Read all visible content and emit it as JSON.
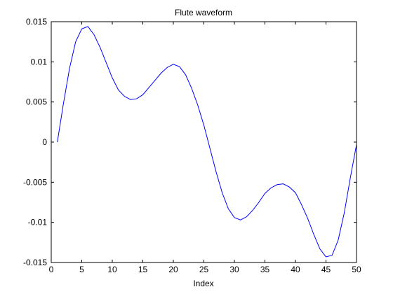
{
  "chart_data": {
    "type": "line",
    "title": "Flute waveform",
    "xlabel": "Index",
    "ylabel": "",
    "xlim": [
      0,
      50
    ],
    "ylim": [
      -0.015,
      0.015
    ],
    "x_ticks": [
      0,
      5,
      10,
      15,
      20,
      25,
      30,
      35,
      40,
      45,
      50
    ],
    "x_tick_labels": [
      "0",
      "5",
      "10",
      "15",
      "20",
      "25",
      "30",
      "35",
      "40",
      "45",
      "50"
    ],
    "y_ticks": [
      0.015,
      0.01,
      0.005,
      0,
      -0.005,
      -0.01,
      -0.015
    ],
    "y_tick_labels": [
      "0.015",
      "0.01",
      "0.005",
      "0",
      "-0.005",
      "-0.01",
      "-0.015"
    ],
    "grid": false,
    "legend": "none",
    "line_color": "#0000ff",
    "series": [
      {
        "x": [
          1,
          2,
          3,
          4,
          5,
          6,
          7,
          8,
          9,
          10,
          11,
          12,
          13,
          14,
          15,
          16,
          17,
          18,
          19,
          20,
          21,
          22,
          23,
          24,
          25,
          26,
          27,
          28,
          29,
          30,
          31,
          32,
          33,
          34,
          35,
          36,
          37,
          38,
          39,
          40,
          41,
          42,
          43,
          44,
          45,
          46,
          47,
          48,
          49,
          50
        ],
        "values": [
          0.0,
          0.0048,
          0.0092,
          0.0125,
          0.0141,
          0.0144,
          0.0134,
          0.0118,
          0.0099,
          0.008,
          0.0065,
          0.0057,
          0.0053,
          0.0054,
          0.0059,
          0.0068,
          0.0077,
          0.0086,
          0.0093,
          0.0097,
          0.0094,
          0.0084,
          0.0067,
          0.0046,
          0.0021,
          -0.0008,
          -0.0037,
          -0.0063,
          -0.0083,
          -0.0094,
          -0.0097,
          -0.0093,
          -0.0085,
          -0.0075,
          -0.0064,
          -0.0057,
          -0.0053,
          -0.0052,
          -0.0056,
          -0.0063,
          -0.0078,
          -0.0095,
          -0.0115,
          -0.0133,
          -0.0143,
          -0.0141,
          -0.0122,
          -0.0088,
          -0.0044,
          -0.0003
        ]
      }
    ]
  }
}
